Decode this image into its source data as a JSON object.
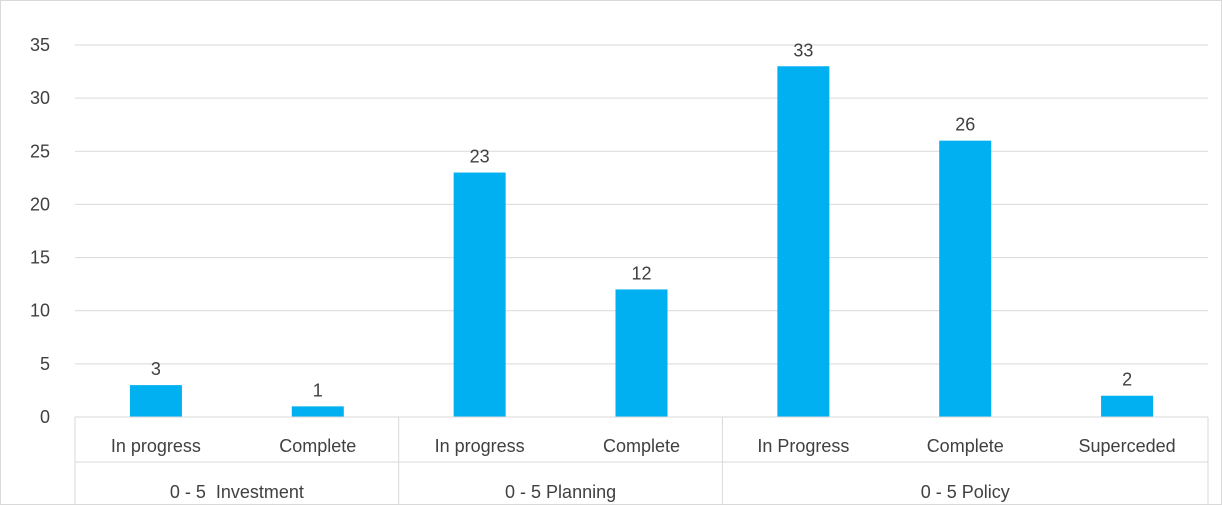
{
  "chart_data": {
    "type": "bar",
    "groups": [
      {
        "name": "0 - 5  Investment",
        "categories": [
          "In progress",
          "Complete"
        ]
      },
      {
        "name": "0 - 5 Planning",
        "categories": [
          "In progress",
          "Complete"
        ]
      },
      {
        "name": "0 - 5 Policy",
        "categories": [
          "In Progress",
          "Complete",
          "Superceded"
        ]
      }
    ],
    "categories": [
      "In progress",
      "Complete",
      "In progress",
      "Complete",
      "In Progress",
      "Complete",
      "Superceded"
    ],
    "values": [
      3,
      1,
      23,
      12,
      33,
      26,
      2
    ],
    "data_labels": [
      "3",
      "1",
      "23",
      "12",
      "33",
      "26",
      "2"
    ],
    "yticks": [
      "0",
      "5",
      "10",
      "15",
      "20",
      "25",
      "30",
      "35"
    ],
    "ylim": [
      0,
      35
    ],
    "grid": true,
    "legend": "none",
    "colors": {
      "bar": "#00b0f0",
      "grid": "#d9d9d9",
      "text": "#404040"
    }
  }
}
